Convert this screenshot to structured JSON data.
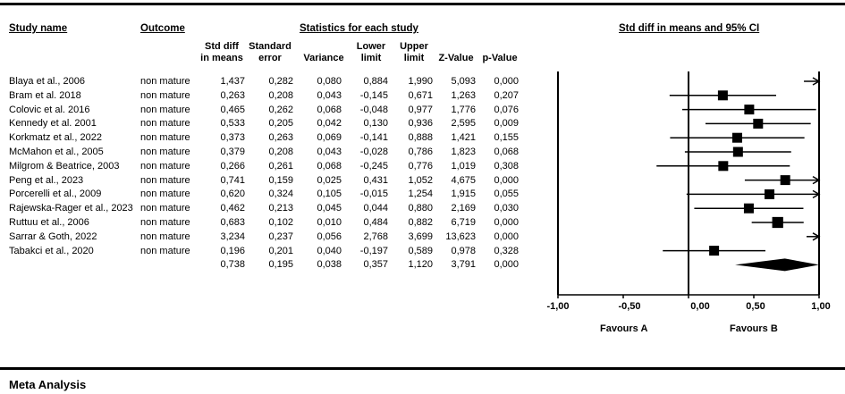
{
  "headers": {
    "study_name": "Study name",
    "outcome": "Outcome",
    "statistics": "Statistics for each study",
    "forest": "Std diff in means and 95% CI"
  },
  "columns": {
    "std_diff": [
      "Std diff",
      "in means"
    ],
    "std_error": [
      "Standard",
      "error"
    ],
    "variance": "Variance",
    "lower": [
      "Lower",
      "limit"
    ],
    "upper": [
      "Upper",
      "limit"
    ],
    "z": "Z-Value",
    "p": "p-Value"
  },
  "rows": [
    {
      "study": "Blaya et al., 2006",
      "outcome": "non mature",
      "sd": "1,437",
      "se": "0,282",
      "var": "0,080",
      "lo": "0,884",
      "up": "1,990",
      "z": "5,093",
      "p": "0,000"
    },
    {
      "study": "Bram et al. 2018",
      "outcome": "non mature",
      "sd": "0,263",
      "se": "0,208",
      "var": "0,043",
      "lo": "-0,145",
      "up": "0,671",
      "z": "1,263",
      "p": "0,207"
    },
    {
      "study": "Colovic et al. 2016",
      "outcome": "non mature",
      "sd": "0,465",
      "se": "0,262",
      "var": "0,068",
      "lo": "-0,048",
      "up": "0,977",
      "z": "1,776",
      "p": "0,076"
    },
    {
      "study": "Kennedy et al. 2001",
      "outcome": "non mature",
      "sd": "0,533",
      "se": "0,205",
      "var": "0,042",
      "lo": "0,130",
      "up": "0,936",
      "z": "2,595",
      "p": "0,009"
    },
    {
      "study": "Korkmatz et al., 2022",
      "outcome": "non mature",
      "sd": "0,373",
      "se": "0,263",
      "var": "0,069",
      "lo": "-0,141",
      "up": "0,888",
      "z": "1,421",
      "p": "0,155"
    },
    {
      "study": "McMahon et al., 2005",
      "outcome": "non mature",
      "sd": "0,379",
      "se": "0,208",
      "var": "0,043",
      "lo": "-0,028",
      "up": "0,786",
      "z": "1,823",
      "p": "0,068"
    },
    {
      "study": "Milgrom & Beatrice, 2003",
      "outcome": "non mature",
      "sd": "0,266",
      "se": "0,261",
      "var": "0,068",
      "lo": "-0,245",
      "up": "0,776",
      "z": "1,019",
      "p": "0,308"
    },
    {
      "study": "Peng et al., 2023",
      "outcome": "non mature",
      "sd": "0,741",
      "se": "0,159",
      "var": "0,025",
      "lo": "0,431",
      "up": "1,052",
      "z": "4,675",
      "p": "0,000"
    },
    {
      "study": "Porcerelli et al., 2009",
      "outcome": "non mature",
      "sd": "0,620",
      "se": "0,324",
      "var": "0,105",
      "lo": "-0,015",
      "up": "1,254",
      "z": "1,915",
      "p": "0,055"
    },
    {
      "study": "Rajewska-Rager et al., 2023",
      "outcome": "non mature",
      "sd": "0,462",
      "se": "0,213",
      "var": "0,045",
      "lo": "0,044",
      "up": "0,880",
      "z": "2,169",
      "p": "0,030"
    },
    {
      "study": "Ruttuu et al., 2006",
      "outcome": "non mature",
      "sd": "0,683",
      "se": "0,102",
      "var": "0,010",
      "lo": "0,484",
      "up": "0,882",
      "z": "6,719",
      "p": "0,000"
    },
    {
      "study": "Sarrar & Goth, 2022",
      "outcome": "non mature",
      "sd": "3,234",
      "se": "0,237",
      "var": "0,056",
      "lo": "2,768",
      "up": "3,699",
      "z": "13,623",
      "p": "0,000"
    },
    {
      "study": "Tabakci et al., 2020",
      "outcome": "non mature",
      "sd": "0,196",
      "se": "0,201",
      "var": "0,040",
      "lo": "-0,197",
      "up": "0,589",
      "z": "0,978",
      "p": "0,328"
    }
  ],
  "summary": {
    "sd": "0,738",
    "se": "0,195",
    "var": "0,038",
    "lo": "0,357",
    "up": "1,120",
    "z": "3,791",
    "p": "0,000"
  },
  "axis_ticks": [
    "-1,00",
    "-0,50",
    "0,00",
    "0,50",
    "1,00"
  ],
  "favours_a": "Favours A",
  "favours_b": "Favours B",
  "footer_title": "Meta Analysis",
  "colors": {
    "ink": "#000000",
    "background": "#ffffff"
  },
  "chart_data": {
    "type": "scatter",
    "subtype": "forest-plot",
    "title": "Std diff in means and 95% CI",
    "xlim": [
      -1,
      1
    ],
    "xticks": [
      -1,
      -0.5,
      0,
      0.5,
      1
    ],
    "xlabel_left": "Favours A",
    "xlabel_right": "Favours B",
    "series": [
      {
        "name": "Std diff in means and 95% CI",
        "categories": [
          "Blaya et al., 2006",
          "Bram et al. 2018",
          "Colovic et al. 2016",
          "Kennedy et al. 2001",
          "Korkmatz et al., 2022",
          "McMahon et al., 2005",
          "Milgrom & Beatrice, 2003",
          "Peng et al., 2023",
          "Porcerelli et al., 2009",
          "Rajewska-Rager et al., 2023",
          "Ruttuu et al., 2006",
          "Sarrar & Goth, 2022",
          "Tabakci et al., 2020"
        ],
        "estimate": [
          1.437,
          0.263,
          0.465,
          0.533,
          0.373,
          0.379,
          0.266,
          0.741,
          0.62,
          0.462,
          0.683,
          3.234,
          0.196
        ],
        "lower": [
          0.884,
          -0.145,
          -0.048,
          0.13,
          -0.141,
          -0.028,
          -0.245,
          0.431,
          -0.015,
          0.044,
          0.484,
          2.768,
          -0.197
        ],
        "upper": [
          1.99,
          0.671,
          0.977,
          0.936,
          0.888,
          0.786,
          0.776,
          1.052,
          1.254,
          0.88,
          0.882,
          3.699,
          0.589
        ],
        "standard_error": [
          0.282,
          0.208,
          0.262,
          0.205,
          0.263,
          0.208,
          0.261,
          0.159,
          0.324,
          0.213,
          0.102,
          0.237,
          0.201
        ]
      }
    ],
    "pooled": {
      "estimate": 0.738,
      "lower": 0.357,
      "upper": 1.12,
      "standard_error": 0.195
    }
  }
}
